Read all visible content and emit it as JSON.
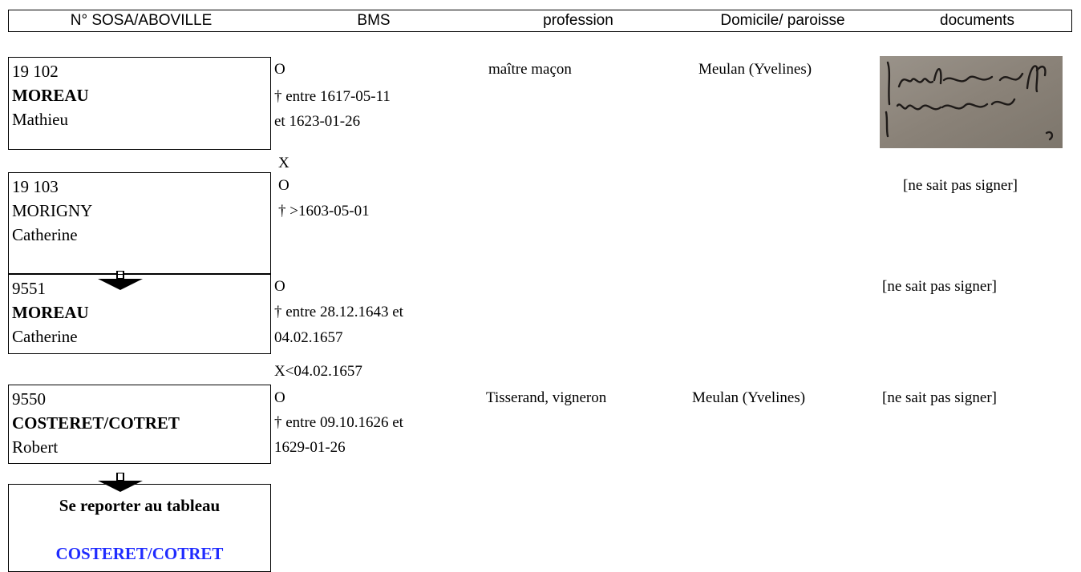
{
  "header": {
    "sosa": "N° SOSA/ABOVILLE",
    "bms": "BMS",
    "profession": "profession",
    "domicile": "Domicile/ paroisse",
    "documents": "documents"
  },
  "persons": [
    {
      "number": "19 102",
      "surname": "MOREAU",
      "firstname": "Mathieu",
      "birth": "O",
      "death_1": "† entre 1617-05-11",
      "death_2": "et 1623-01-26",
      "profession": "maître maçon",
      "domicile": "Meulan (Yvelines)",
      "document": "signature image"
    },
    {
      "number": "19 103",
      "surname": "MORIGNY",
      "firstname": "Catherine",
      "birth": "O",
      "death_1": "† >1603-05-01",
      "document": "[ne sait pas signer]"
    },
    {
      "number": "9551",
      "surname": "MOREAU",
      "firstname": "Catherine",
      "birth": "O",
      "death_1": "† entre 28.12.1643 et",
      "death_2": "04.02.1657",
      "document": "[ne sait pas signer]"
    },
    {
      "number": "9550",
      "surname": "COSTERET/COTRET",
      "firstname": "Robert",
      "birth": "O",
      "death_1": "† entre 09.10.1626 et",
      "death_2": "1629-01-26",
      "profession": "Tisserand, vigneron",
      "domicile": "Meulan (Yvelines)",
      "document": "[ne sait pas signer]"
    }
  ],
  "marriages": {
    "first": "X",
    "second": "X<04.02.1657"
  },
  "reference": {
    "line1": "Se reporter au tableau",
    "line2": "COSTERET/COTRET"
  },
  "colors": {
    "link_blue": "#1f2bff",
    "signature_bg": "#8a8278"
  },
  "icons": [
    "down-arrow-icon"
  ]
}
